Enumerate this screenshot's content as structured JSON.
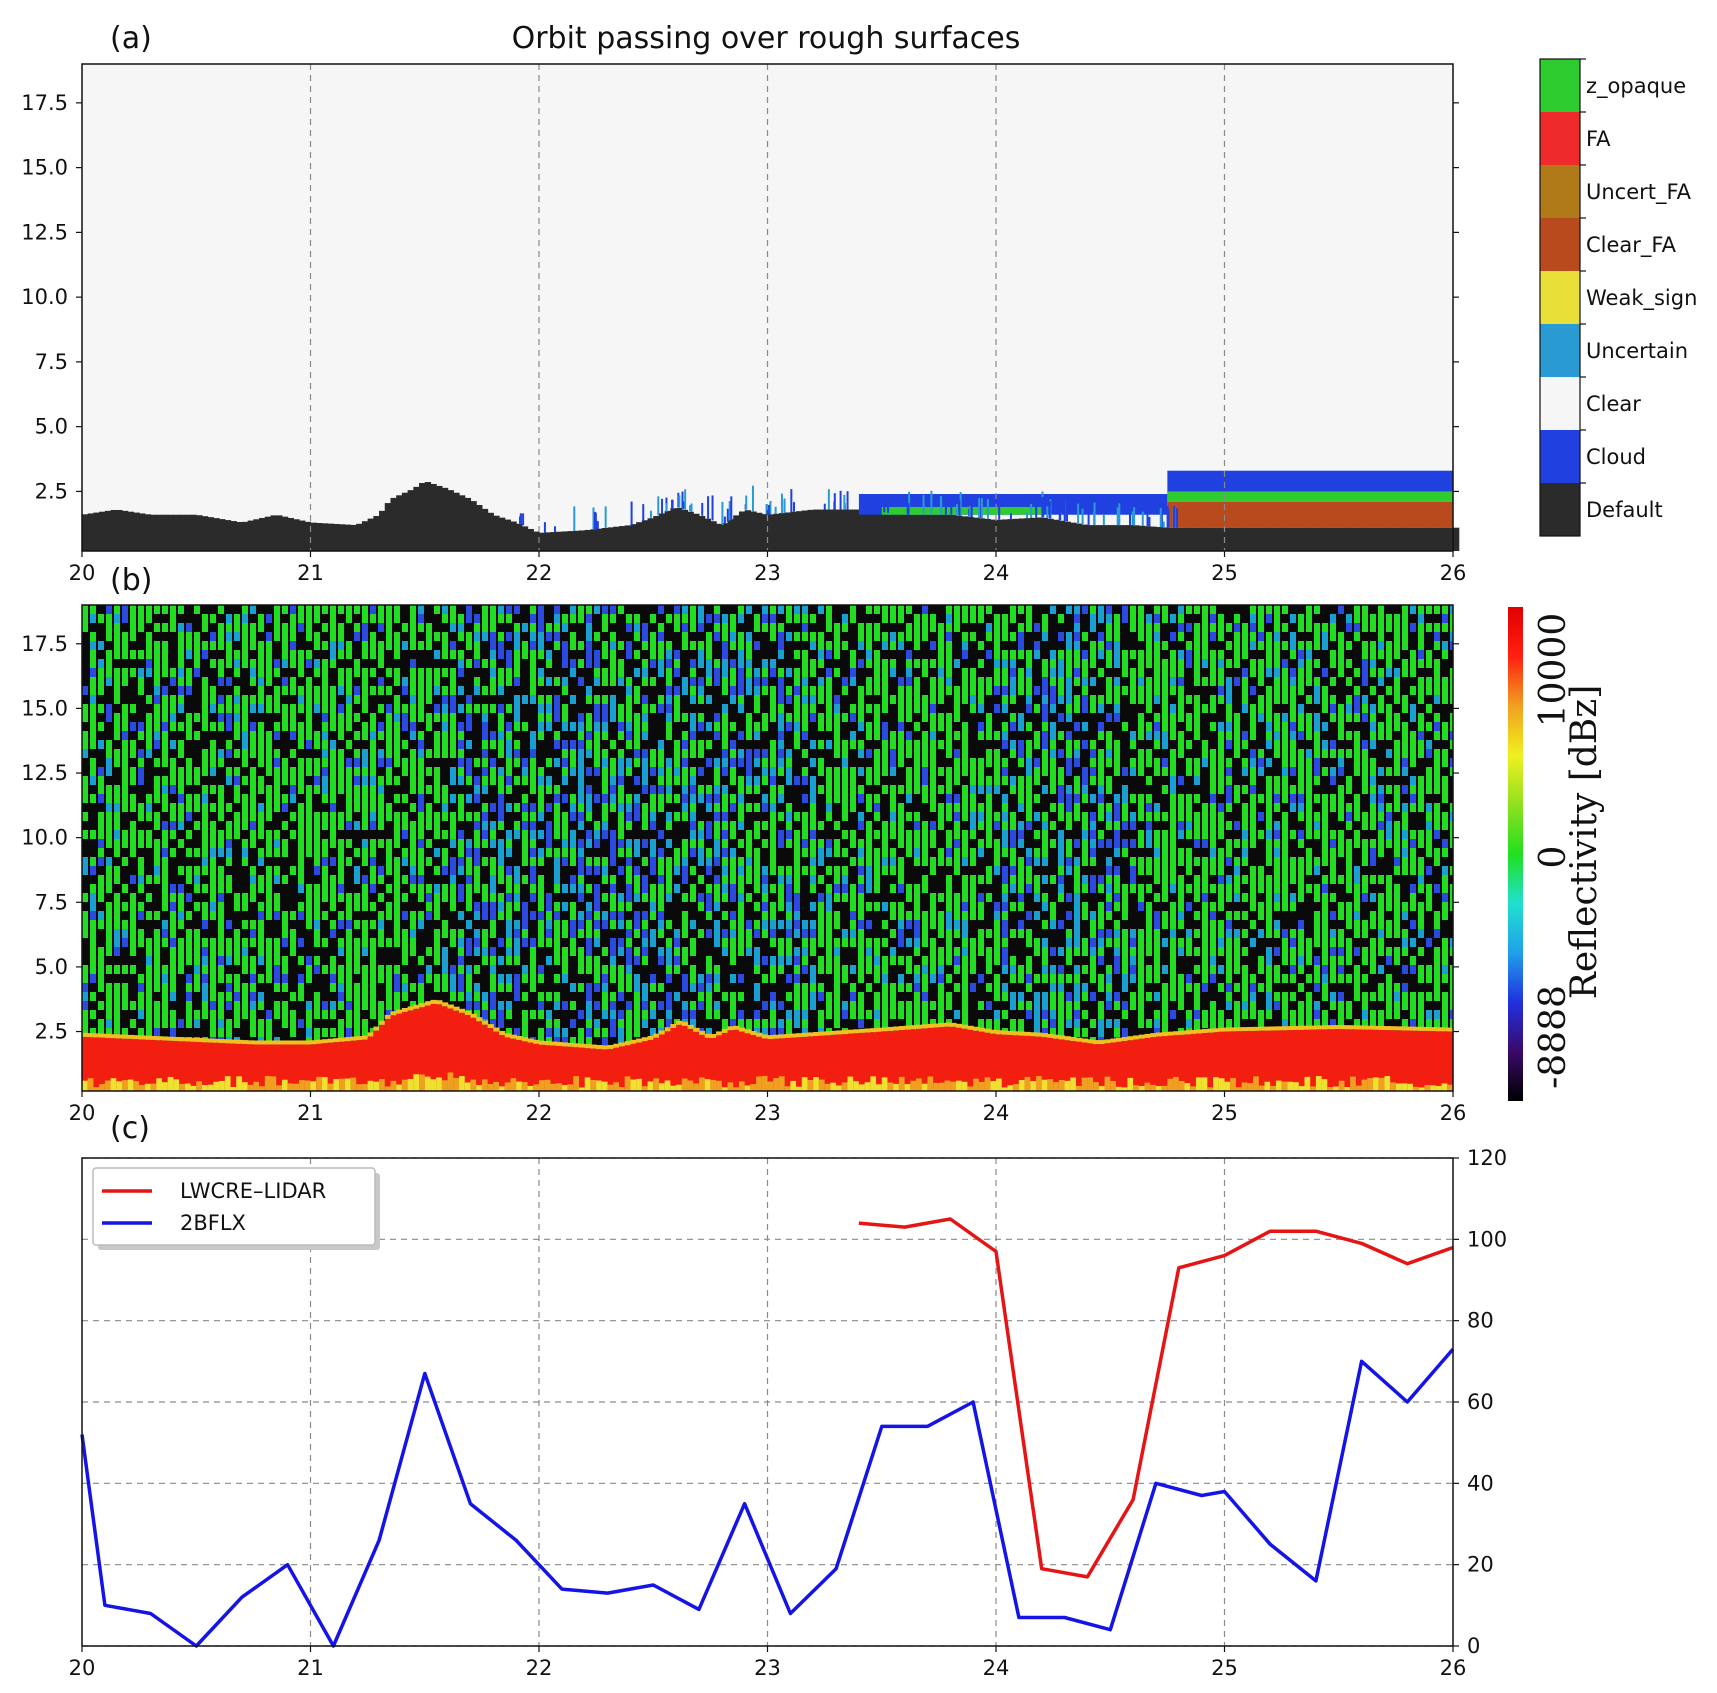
{
  "chart_data": [
    {
      "panel": "(a)",
      "type": "heatmap",
      "title": "Orbit passing over rough surfaces",
      "xlim": [
        20,
        26
      ],
      "ylim": [
        0.2,
        19
      ],
      "x_ticks": [
        "20",
        "21",
        "22",
        "23",
        "24",
        "25",
        "26"
      ],
      "y_ticks": [
        "2.5",
        "5.0",
        "7.5",
        "10.0",
        "12.5",
        "15.0",
        "17.5"
      ],
      "grid": "vertical dashed",
      "legend": {
        "placement": "right",
        "entries": [
          {
            "label": "z_opaque",
            "color": "#2ecc2e"
          },
          {
            "label": "FA",
            "color": "#ee2a2a"
          },
          {
            "label": "Uncert_FA",
            "color": "#b07a18"
          },
          {
            "label": "Clear_FA",
            "color": "#b84a1e"
          },
          {
            "label": "Weak_sign",
            "color": "#e8e038"
          },
          {
            "label": "Uncertain",
            "color": "#2a9ad2"
          },
          {
            "label": "Clear",
            "color": "#f6f6f6"
          },
          {
            "label": "Cloud",
            "color": "#2040e0"
          },
          {
            "label": "Default",
            "color": "#2b2b2b"
          }
        ]
      },
      "default_top_profile": [
        [
          20.0,
          1.6
        ],
        [
          20.15,
          1.8
        ],
        [
          20.3,
          1.6
        ],
        [
          20.5,
          1.6
        ],
        [
          20.7,
          1.3
        ],
        [
          20.85,
          1.6
        ],
        [
          21.0,
          1.3
        ],
        [
          21.2,
          1.2
        ],
        [
          21.3,
          1.6
        ],
        [
          21.35,
          2.2
        ],
        [
          21.45,
          2.6
        ],
        [
          21.5,
          2.9
        ],
        [
          21.6,
          2.6
        ],
        [
          21.7,
          2.2
        ],
        [
          21.8,
          1.6
        ],
        [
          21.9,
          1.3
        ],
        [
          22.0,
          0.9
        ],
        [
          22.2,
          1.0
        ],
        [
          22.4,
          1.2
        ],
        [
          22.5,
          1.5
        ],
        [
          22.6,
          1.9
        ],
        [
          22.7,
          1.6
        ],
        [
          22.8,
          1.2
        ],
        [
          22.9,
          1.8
        ],
        [
          23.0,
          1.6
        ],
        [
          23.2,
          1.8
        ],
        [
          23.4,
          1.8
        ],
        [
          23.6,
          1.6
        ],
        [
          23.8,
          1.6
        ],
        [
          24.0,
          1.4
        ],
        [
          24.2,
          1.5
        ],
        [
          24.4,
          1.2
        ],
        [
          24.6,
          1.2
        ],
        [
          24.75,
          1.1
        ],
        [
          25.0,
          1.1
        ],
        [
          25.5,
          1.1
        ],
        [
          26.0,
          1.1
        ]
      ],
      "cloud_layers": [
        {
          "x": [
            23.4,
            24.75
          ],
          "y": [
            1.6,
            2.4
          ]
        },
        {
          "x": [
            24.75,
            26.0
          ],
          "y": [
            2.3,
            3.3
          ]
        }
      ],
      "z_opaque_layers": [
        {
          "x": [
            23.5,
            24.2
          ],
          "y": [
            1.6,
            1.9
          ]
        },
        {
          "x": [
            24.75,
            26.0
          ],
          "y": [
            2.1,
            2.5
          ]
        }
      ],
      "clear_fa_layer": {
        "x": [
          24.75,
          26.0
        ],
        "y": [
          1.1,
          2.1
        ]
      }
    },
    {
      "panel": "(b)",
      "type": "heatmap",
      "xlim": [
        20,
        26
      ],
      "ylim": [
        0.2,
        19
      ],
      "x_ticks": [
        "20",
        "21",
        "22",
        "23",
        "24",
        "25",
        "26"
      ],
      "y_ticks": [
        "2.5",
        "5.0",
        "7.5",
        "10.0",
        "12.5",
        "15.0",
        "17.5"
      ],
      "colorbar": {
        "label": "Reflectivity [dBz]",
        "ticks": [
          "-8888",
          "0",
          "10000"
        ],
        "colors": [
          "#000000",
          "#3a0a6a",
          "#2030e0",
          "#20a0e8",
          "#20e0d0",
          "#20e020",
          "#90e020",
          "#f0f020",
          "#f0a020",
          "#ff2010",
          "#e00000"
        ]
      },
      "surface_top_profile": [
        [
          20.0,
          2.3
        ],
        [
          20.5,
          2.1
        ],
        [
          20.75,
          2.0
        ],
        [
          21.0,
          2.0
        ],
        [
          21.25,
          2.2
        ],
        [
          21.35,
          3.1
        ],
        [
          21.55,
          3.6
        ],
        [
          21.7,
          3.1
        ],
        [
          21.85,
          2.3
        ],
        [
          22.0,
          2.0
        ],
        [
          22.3,
          1.8
        ],
        [
          22.5,
          2.2
        ],
        [
          22.62,
          2.8
        ],
        [
          22.75,
          2.2
        ],
        [
          22.85,
          2.6
        ],
        [
          23.0,
          2.2
        ],
        [
          23.5,
          2.5
        ],
        [
          23.8,
          2.7
        ],
        [
          24.0,
          2.4
        ],
        [
          24.2,
          2.3
        ],
        [
          24.45,
          2.0
        ],
        [
          24.7,
          2.3
        ],
        [
          25.0,
          2.5
        ],
        [
          25.5,
          2.6
        ],
        [
          26.0,
          2.5
        ]
      ]
    },
    {
      "panel": "(c)",
      "type": "line",
      "xlim": [
        20,
        26
      ],
      "ylim": [
        0,
        120
      ],
      "x_ticks": [
        "20",
        "21",
        "22",
        "23",
        "24",
        "25",
        "26"
      ],
      "y_ticks": [
        "0",
        "20",
        "40",
        "60",
        "80",
        "100",
        "120"
      ],
      "y_axis_side": "right",
      "grid": "dashed",
      "legend_placement": "top-left",
      "series": [
        {
          "name": "LWCRE–LIDAR",
          "color": "#e61414",
          "x": [
            23.4,
            23.6,
            23.8,
            24.0,
            24.2,
            24.4,
            24.6,
            24.8,
            25.0,
            25.2,
            25.4,
            25.6,
            25.8,
            26.0
          ],
          "y": [
            104,
            103,
            105,
            97,
            19,
            17,
            36,
            93,
            96,
            102,
            102,
            99,
            94,
            98
          ]
        },
        {
          "name": "2BFLX",
          "color": "#1414e6",
          "x": [
            20.0,
            20.1,
            20.3,
            20.5,
            20.7,
            20.9,
            21.1,
            21.3,
            21.5,
            21.7,
            21.9,
            22.1,
            22.3,
            22.5,
            22.7,
            22.9,
            23.1,
            23.3,
            23.5,
            23.7,
            23.9,
            24.1,
            24.3,
            24.5,
            24.7,
            24.9,
            25.0,
            25.2,
            25.4,
            25.6,
            25.8,
            26.0
          ],
          "y": [
            52,
            10,
            8,
            0,
            12,
            20,
            0,
            26,
            67,
            35,
            26,
            14,
            13,
            15,
            9,
            35,
            8,
            19,
            54,
            54,
            60,
            7,
            7,
            4,
            40,
            37,
            38,
            25,
            16,
            70,
            60,
            73
          ]
        }
      ]
    }
  ],
  "panel_labels": {
    "a": "(a)",
    "b": "(b)",
    "c": "(c)"
  },
  "panel_b_partial_title": "...passing over rough surfaces"
}
